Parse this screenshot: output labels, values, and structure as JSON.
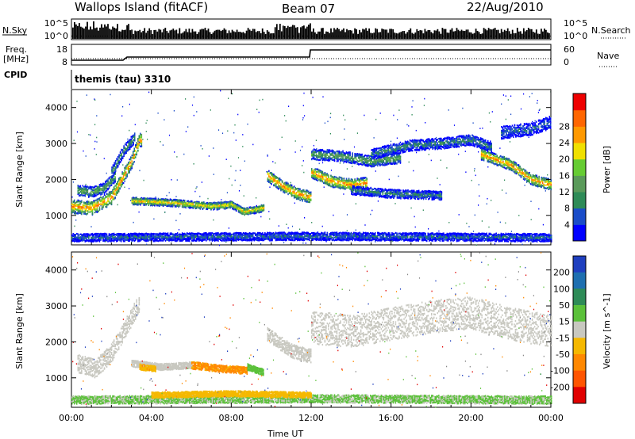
{
  "header": {
    "site": "Wallops Island (fitACF)",
    "beam": "Beam 07",
    "date": "22/Aug/2010"
  },
  "strips": {
    "nsky_label": "N.Sky",
    "nsearch_label": "N.Search",
    "noise_ticks_left": [
      "10^5",
      "10^0"
    ],
    "noise_ticks_right": [
      "10^5",
      "10^0"
    ],
    "freq_label": "Freq.",
    "freq_unit": "[MHz]",
    "freq_ticks": [
      "18",
      "8"
    ],
    "nave_label": "Nave",
    "nave_ticks": [
      "60",
      "0"
    ],
    "cpid_label": "CPID",
    "program": "themis (tau) 3310"
  },
  "colors": {
    "power": [
      "#0000ff",
      "#1a4cc8",
      "#2e8b57",
      "#5a9a5a",
      "#66cc33",
      "#f0e000",
      "#ff9900",
      "#ff6600",
      "#ee0000"
    ],
    "velocity": [
      "#1f3fbf",
      "#1e6fb0",
      "#2e8b57",
      "#5bc13a",
      "#c8c8c0",
      "#f5b800",
      "#ff8800",
      "#ff5500",
      "#e00000"
    ]
  },
  "chart_data": [
    {
      "type": "heatmap",
      "quantity": "Power",
      "xlabel": "",
      "ylabel": "Slant Range [km]",
      "colorbar_label": "Power [dB]",
      "colorbar_ticks": [
        "4",
        "8",
        "12",
        "16",
        "20",
        "24",
        "28"
      ],
      "x_ticks": [
        "00:00",
        "04:00",
        "08:00",
        "12:00",
        "16:00",
        "20:00",
        "00:00"
      ],
      "y_ticks": [
        "1000",
        "2000",
        "3000",
        "4000"
      ],
      "xlim_hours": [
        0,
        24
      ],
      "ylim_km": [
        180,
        4500
      ],
      "echo_bands": [
        {
          "t_start": 0.0,
          "t_end": 3.5,
          "range_points": [
            [
              0.0,
              1250
            ],
            [
              1.0,
              1200
            ],
            [
              2.0,
              1500
            ],
            [
              3.0,
              2500
            ],
            [
              3.4,
              3100
            ]
          ],
          "thickness_km": 380,
          "peak_db": 28
        },
        {
          "t_start": 0.3,
          "t_end": 2.2,
          "range_points": [
            [
              0.3,
              1700
            ],
            [
              1.0,
              1650
            ],
            [
              1.6,
              1750
            ],
            [
              2.2,
              2100
            ]
          ],
          "thickness_km": 300,
          "peak_db": 16
        },
        {
          "t_start": 2.0,
          "t_end": 3.2,
          "range_points": [
            [
              2.0,
              2200
            ],
            [
              2.6,
              2800
            ],
            [
              3.2,
              3200
            ]
          ],
          "thickness_km": 300,
          "peak_db": 14
        },
        {
          "t_start": 3.0,
          "t_end": 9.6,
          "range_points": [
            [
              3.0,
              1400
            ],
            [
              5.0,
              1350
            ],
            [
              7.0,
              1250
            ],
            [
              8.0,
              1300
            ],
            [
              8.6,
              1100
            ],
            [
              9.6,
              1200
            ]
          ],
          "thickness_km": 200,
          "peak_db": 24
        },
        {
          "t_start": 9.8,
          "t_end": 12.0,
          "range_points": [
            [
              9.8,
              2100
            ],
            [
              10.6,
              1800
            ],
            [
              11.3,
              1600
            ],
            [
              12.0,
              1500
            ]
          ],
          "thickness_km": 320,
          "peak_db": 28
        },
        {
          "t_start": 12.0,
          "t_end": 14.8,
          "range_points": [
            [
              12.0,
              2200
            ],
            [
              13.0,
              1950
            ],
            [
              14.0,
              1850
            ],
            [
              14.8,
              1900
            ]
          ],
          "thickness_km": 320,
          "peak_db": 28
        },
        {
          "t_start": 12.0,
          "t_end": 16.5,
          "range_points": [
            [
              12.0,
              2700
            ],
            [
              13.5,
              2650
            ],
            [
              15.0,
              2500
            ],
            [
              16.5,
              2600
            ]
          ],
          "thickness_km": 300,
          "peak_db": 16
        },
        {
          "t_start": 14.0,
          "t_end": 18.5,
          "range_points": [
            [
              14.0,
              1700
            ],
            [
              16.0,
              1600
            ],
            [
              18.5,
              1550
            ]
          ],
          "thickness_km": 240,
          "peak_db": 12
        },
        {
          "t_start": 15.0,
          "t_end": 21.0,
          "range_points": [
            [
              15.0,
              2700
            ],
            [
              17.0,
              2950
            ],
            [
              18.5,
              3000
            ],
            [
              20.0,
              3100
            ],
            [
              21.0,
              2900
            ]
          ],
          "thickness_km": 300,
          "peak_db": 12
        },
        {
          "t_start": 20.5,
          "t_end": 24.0,
          "range_points": [
            [
              20.5,
              2700
            ],
            [
              22.0,
              2400
            ],
            [
              23.0,
              2000
            ],
            [
              24.0,
              1850
            ]
          ],
          "thickness_km": 300,
          "peak_db": 28
        },
        {
          "t_start": 21.5,
          "t_end": 24.0,
          "range_points": [
            [
              21.5,
              3300
            ],
            [
              23.0,
              3400
            ],
            [
              24.0,
              3600
            ]
          ],
          "thickness_km": 350,
          "peak_db": 10
        },
        {
          "t_start": 0.0,
          "t_end": 24.0,
          "range_points": [
            [
              0.0,
              380
            ],
            [
              12.0,
              420
            ],
            [
              24.0,
              380
            ]
          ],
          "thickness_km": 220,
          "peak_db": 10
        }
      ]
    },
    {
      "type": "heatmap",
      "quantity": "Velocity",
      "xlabel": "Time UT",
      "ylabel": "Slant Range [km]",
      "colorbar_label": "Velocity [m s^-1]",
      "colorbar_ticks": [
        "-200",
        "-100",
        "-50",
        "-15",
        "15",
        "50",
        "100",
        "200"
      ],
      "x_ticks": [
        "00:00",
        "04:00",
        "08:00",
        "12:00",
        "16:00",
        "20:00",
        "00:00"
      ],
      "y_ticks": [
        "1000",
        "2000",
        "3000",
        "4000"
      ],
      "xlim_hours": [
        0,
        24
      ],
      "ylim_km": [
        180,
        4500
      ],
      "echo_bands": [
        {
          "t_start": 0.3,
          "t_end": 3.4,
          "range_points": [
            [
              0.3,
              1400
            ],
            [
              1.2,
              1250
            ],
            [
              2.0,
              1700
            ],
            [
              3.0,
              2700
            ],
            [
              3.4,
              3100
            ]
          ],
          "thickness_km": 500,
          "velocity_ms": 0
        },
        {
          "t_start": 3.0,
          "t_end": 6.0,
          "range_points": [
            [
              3.0,
              1400
            ],
            [
              4.5,
              1300
            ],
            [
              6.0,
              1350
            ]
          ],
          "thickness_km": 180,
          "velocity_ms": 0
        },
        {
          "t_start": 3.4,
          "t_end": 4.2,
          "range_points": [
            [
              3.4,
              1300
            ],
            [
              4.2,
              1250
            ]
          ],
          "thickness_km": 160,
          "velocity_ms": -40
        },
        {
          "t_start": 6.0,
          "t_end": 8.8,
          "range_points": [
            [
              6.0,
              1350
            ],
            [
              7.5,
              1250
            ],
            [
              8.8,
              1200
            ]
          ],
          "thickness_km": 200,
          "velocity_ms": -60
        },
        {
          "t_start": 8.8,
          "t_end": 9.6,
          "range_points": [
            [
              8.8,
              1300
            ],
            [
              9.6,
              1150
            ]
          ],
          "thickness_km": 180,
          "velocity_ms": 30
        },
        {
          "t_start": 9.8,
          "t_end": 12.0,
          "range_points": [
            [
              9.8,
              2200
            ],
            [
              11.0,
              1750
            ],
            [
              12.0,
              1600
            ]
          ],
          "thickness_km": 380,
          "velocity_ms": 0
        },
        {
          "t_start": 12.0,
          "t_end": 24.0,
          "range_points": [
            [
              12.0,
              2400
            ],
            [
              14.0,
              2300
            ],
            [
              16.0,
              2500
            ],
            [
              18.0,
              2700
            ],
            [
              20.0,
              2800
            ],
            [
              22.0,
              2500
            ],
            [
              24.0,
              2300
            ]
          ],
          "thickness_km": 900,
          "velocity_ms": 0
        },
        {
          "t_start": 0.0,
          "t_end": 24.0,
          "range_points": [
            [
              0.0,
              380
            ],
            [
              12.0,
              420
            ],
            [
              24.0,
              380
            ]
          ],
          "thickness_km": 220,
          "velocity_ms": 20
        },
        {
          "t_start": 4.0,
          "t_end": 12.0,
          "range_points": [
            [
              4.0,
              520
            ],
            [
              8.0,
              560
            ],
            [
              12.0,
              520
            ]
          ],
          "thickness_km": 160,
          "velocity_ms": -30
        }
      ]
    }
  ]
}
